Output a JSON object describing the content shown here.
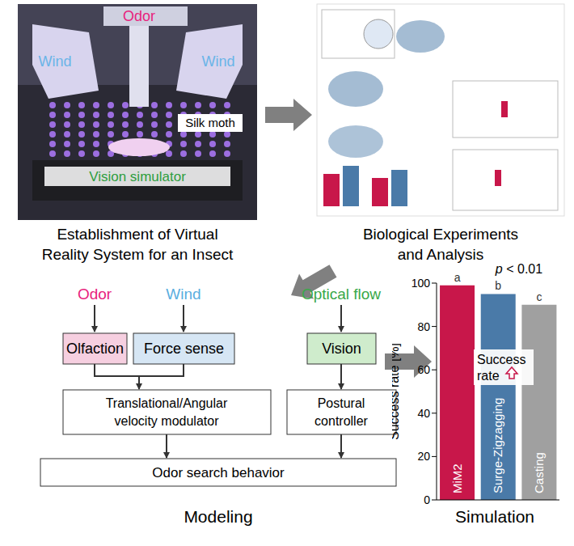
{
  "vr_system": {
    "labels": {
      "odor": "Odor",
      "wind_left": "Wind",
      "wind_right": "Wind",
      "insect": "Silk moth",
      "vision": "Vision simulator"
    },
    "caption": [
      "Establishment of Virtual",
      "Reality System for an Insect"
    ]
  },
  "experiments": {
    "caption": [
      "Biological Experiments",
      "and Analysis"
    ]
  },
  "modeling": {
    "inputs": [
      {
        "label": "Odor",
        "color": "#e8237d"
      },
      {
        "label": "Wind",
        "color": "#5aaee0"
      },
      {
        "label": "Optical flow",
        "color": "#3aa84a"
      }
    ],
    "senses": [
      {
        "label": "Olfaction",
        "color": "#f6cfe0"
      },
      {
        "label": "Force sense",
        "color": "#d6e6f4"
      },
      {
        "label": "Vision",
        "color": "#cfeccc"
      }
    ],
    "modulator": [
      "Translational/Angular",
      "velocity modulator"
    ],
    "controller": [
      "Postural",
      "controller"
    ],
    "output": "Odor search behavior",
    "caption": "Modeling"
  },
  "simulation": {
    "caption": "Simulation",
    "note": [
      "Success",
      "rate"
    ]
  },
  "chart_data": {
    "type": "bar",
    "categories": [
      "MiM2",
      "Surge-Zigzagging",
      "Casting"
    ],
    "values": [
      99,
      95,
      90
    ],
    "colors": [
      "#c8174a",
      "#4a7aa8",
      "#a0a0a0"
    ],
    "group_labels": [
      "a",
      "b",
      "c"
    ],
    "ylabel": "Success rate [%]",
    "annotation": "p < 0.01",
    "ylim": [
      0,
      100
    ],
    "yticks": [
      0,
      20,
      40,
      60,
      80,
      100
    ],
    "tick_labels": "y"
  }
}
